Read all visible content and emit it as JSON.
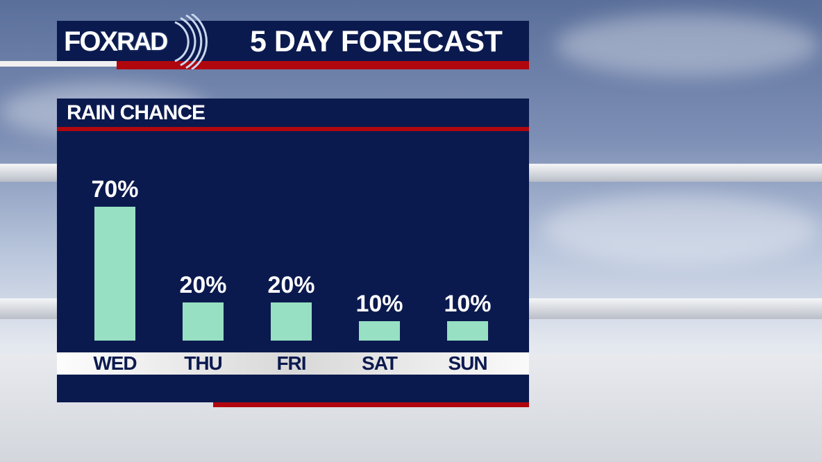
{
  "header": {
    "logo": "FOXRAD",
    "logo_fox": "FOX",
    "logo_rad": "RAD",
    "title": "5 DAY FORECAST"
  },
  "panel": {
    "title": "RAIN CHANCE"
  },
  "colors": {
    "navy": "#0b1a4e",
    "red": "#b0070f",
    "bar": "#97e0c3"
  },
  "chart_data": {
    "type": "bar",
    "title": "RAIN CHANCE",
    "categories": [
      "WED",
      "THU",
      "FRI",
      "SAT",
      "SUN"
    ],
    "values": [
      70,
      20,
      20,
      10,
      10
    ],
    "labels": [
      "70%",
      "20%",
      "20%",
      "10%",
      "10%"
    ],
    "unit": "%",
    "ylim": [
      0,
      100
    ],
    "grid": false
  }
}
